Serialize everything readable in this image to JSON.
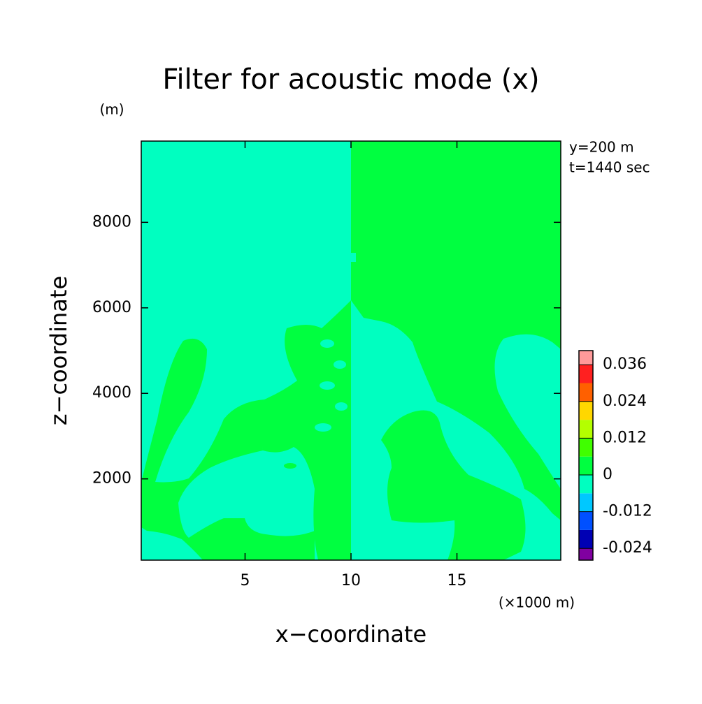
{
  "chart_data": {
    "type": "contour",
    "title": "Filter for acoustic mode (x)",
    "ylabel_unit": "(m)",
    "annotations": [
      "y=200 m",
      "t=1440 sec"
    ],
    "xlabel_unit": "(×1000 m)",
    "xlabel": "x−coordinate",
    "ylabel": "z−coordinate",
    "xlim": [
      0.1,
      19.9
    ],
    "xticks": [
      5,
      10,
      15
    ],
    "ylim": [
      100,
      9900
    ],
    "yticks": [
      2000,
      4000,
      6000,
      8000
    ],
    "levels": [
      -0.024,
      -0.018,
      -0.012,
      -0.006,
      0,
      0.006,
      0.012,
      0.018,
      0.024,
      0.03,
      0.036
    ],
    "level_colors": [
      "#8000a0",
      "#0000b4",
      "#0050ff",
      "#00c8ff",
      "#00ffc0",
      "#00ff40",
      "#40ff00",
      "#b4ff00",
      "#ffd700",
      "#ff6000",
      "#ff2020",
      "#ff9a9a"
    ],
    "cticks": [
      -0.024,
      -0.012,
      0,
      0.012,
      0.024,
      0.036
    ]
  }
}
